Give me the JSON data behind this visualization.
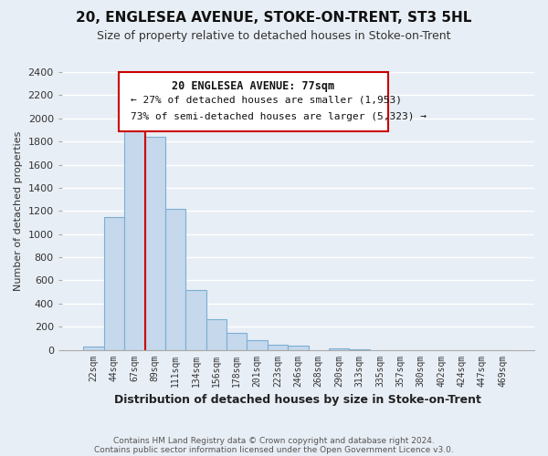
{
  "title": "20, ENGLESEA AVENUE, STOKE-ON-TRENT, ST3 5HL",
  "subtitle": "Size of property relative to detached houses in Stoke-on-Trent",
  "xlabel": "Distribution of detached houses by size in Stoke-on-Trent",
  "ylabel": "Number of detached properties",
  "bar_labels": [
    "22sqm",
    "44sqm",
    "67sqm",
    "89sqm",
    "111sqm",
    "134sqm",
    "156sqm",
    "178sqm",
    "201sqm",
    "223sqm",
    "246sqm",
    "268sqm",
    "290sqm",
    "313sqm",
    "335sqm",
    "357sqm",
    "380sqm",
    "402sqm",
    "424sqm",
    "447sqm",
    "469sqm"
  ],
  "bar_values": [
    25,
    1150,
    1950,
    1840,
    1215,
    515,
    265,
    150,
    80,
    45,
    35,
    0,
    15,
    5,
    0,
    0,
    0,
    0,
    0,
    0,
    0
  ],
  "bar_color": "#c5d8ec",
  "bar_edge_color": "#7bafd4",
  "property_line_color": "#cc0000",
  "ylim": [
    0,
    2400
  ],
  "yticks": [
    0,
    200,
    400,
    600,
    800,
    1000,
    1200,
    1400,
    1600,
    1800,
    2000,
    2200,
    2400
  ],
  "annotation_title": "20 ENGLESEA AVENUE: 77sqm",
  "annotation_line1": "← 27% of detached houses are smaller (1,953)",
  "annotation_line2": "73% of semi-detached houses are larger (5,323) →",
  "annotation_box_color": "#ffffff",
  "annotation_box_edge": "#cc0000",
  "footer_line1": "Contains HM Land Registry data © Crown copyright and database right 2024.",
  "footer_line2": "Contains public sector information licensed under the Open Government Licence v3.0.",
  "background_color": "#e8eef5",
  "grid_color": "#ffffff",
  "title_fontsize": 11,
  "subtitle_fontsize": 9
}
